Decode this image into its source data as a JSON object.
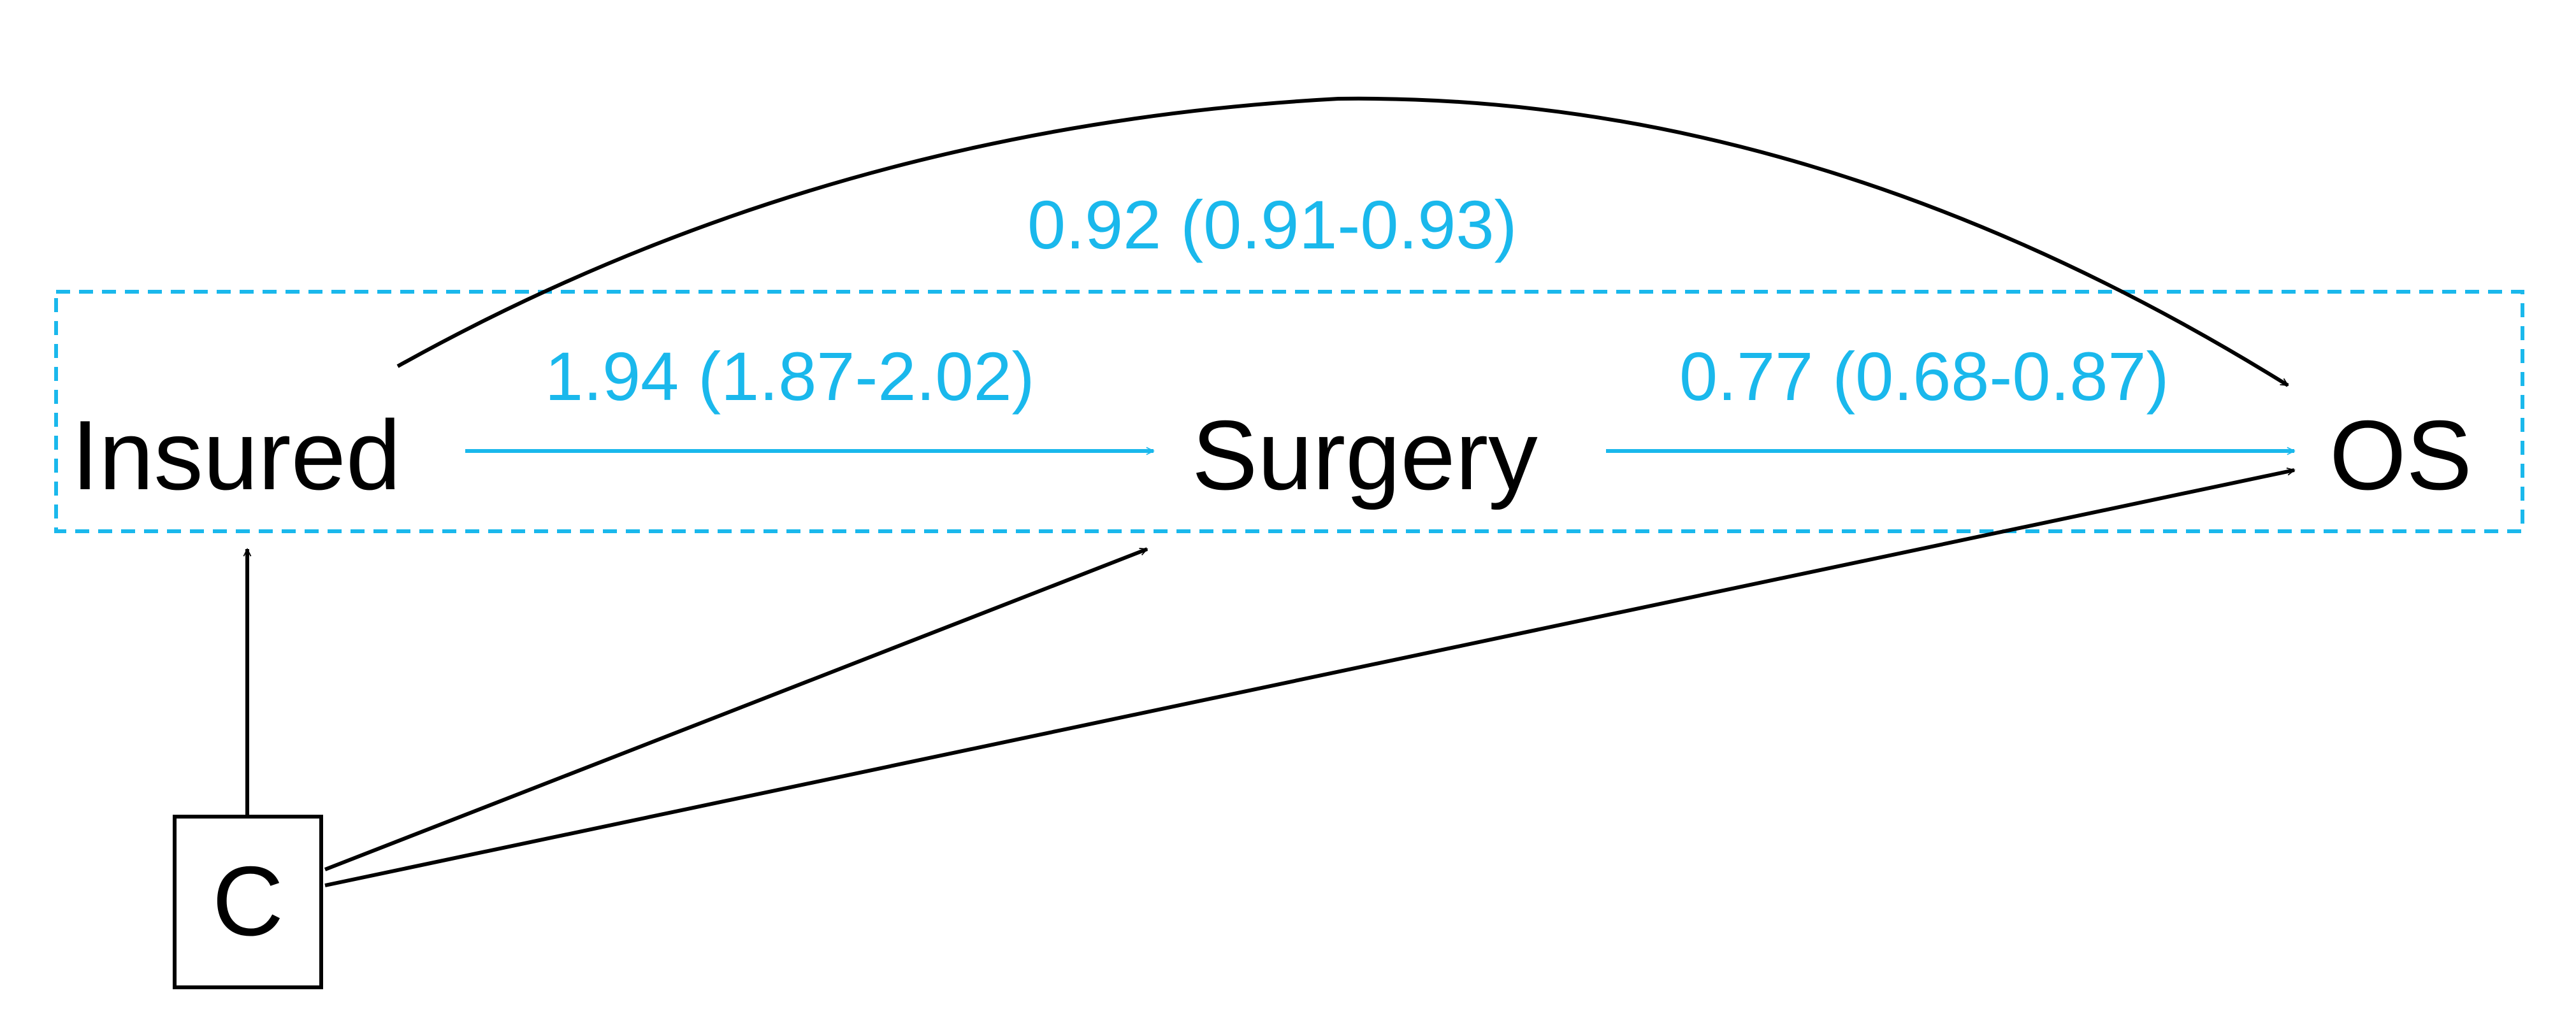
{
  "diagram": {
    "nodes": {
      "insured": {
        "label": "Insured"
      },
      "surgery": {
        "label": "Surgery"
      },
      "os": {
        "label": "OS"
      },
      "confounder": {
        "label": "C"
      }
    },
    "edges": {
      "insured_os": {
        "estimate": "0.92 (0.91-0.93)"
      },
      "insured_surgery": {
        "estimate": "1.94 (1.87-2.02)"
      },
      "surgery_os": {
        "estimate": "0.77 (0.68-0.87)"
      }
    },
    "colors": {
      "highlight": "#1ab8ec",
      "default": "#000000",
      "background": "#ffffff"
    }
  }
}
